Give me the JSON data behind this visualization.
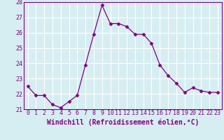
{
  "hours": [
    0,
    1,
    2,
    3,
    4,
    5,
    6,
    7,
    8,
    9,
    10,
    11,
    12,
    13,
    14,
    15,
    16,
    17,
    18,
    19,
    20,
    21,
    22,
    23
  ],
  "values": [
    22.5,
    21.9,
    21.9,
    21.3,
    21.1,
    21.5,
    21.9,
    23.9,
    25.9,
    27.8,
    26.6,
    26.6,
    26.4,
    25.9,
    25.9,
    25.3,
    23.9,
    23.2,
    22.7,
    22.1,
    22.4,
    22.2,
    22.1,
    22.1
  ],
  "line_color": "#800080",
  "marker": "D",
  "marker_size": 2.5,
  "bg_color": "#d6eef2",
  "grid_color": "#ffffff",
  "xlabel": "Windchill (Refroidissement éolien,°C)",
  "ylim": [
    21,
    28
  ],
  "yticks": [
    21,
    22,
    23,
    24,
    25,
    26,
    27,
    28
  ],
  "xlim": [
    -0.5,
    23.5
  ],
  "xticks": [
    0,
    1,
    2,
    3,
    4,
    5,
    6,
    7,
    8,
    9,
    10,
    11,
    12,
    13,
    14,
    15,
    16,
    17,
    18,
    19,
    20,
    21,
    22,
    23
  ],
  "tick_fontsize": 6.0,
  "xlabel_fontsize": 7.0
}
